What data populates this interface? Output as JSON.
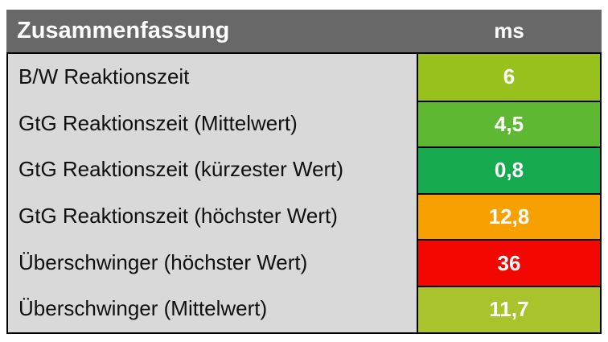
{
  "table": {
    "header": {
      "title": "Zusammenfassung",
      "unit": "ms"
    },
    "rows": [
      {
        "label": "B/W Reaktionszeit",
        "value": "6",
        "color": "#99c21e"
      },
      {
        "label": "GtG Reaktionszeit (Mittelwert)",
        "value": "4,5",
        "color": "#5eb832"
      },
      {
        "label": "GtG Reaktionszeit (kürzester Wert)",
        "value": "0,8",
        "color": "#17a94e"
      },
      {
        "label": "GtG Reaktionszeit (höchster Wert)",
        "value": "12,8",
        "color": "#f8a000"
      },
      {
        "label": "Überschwinger (höchster Wert)",
        "value": "36",
        "color": "#f20800"
      },
      {
        "label": "Überschwinger (Mittelwert)",
        "value": "11,7",
        "color": "#a9c32d"
      }
    ],
    "colors": {
      "header_bg": "#686868",
      "header_text": "#ffffff",
      "label_bg": "#d9d9d9",
      "label_text": "#101010",
      "value_text": "#ffffff",
      "border": "#000000"
    }
  },
  "chart_data": {
    "type": "table",
    "title": "Zusammenfassung",
    "unit_column_header": "ms",
    "columns": [
      "Zusammenfassung",
      "ms"
    ],
    "categories": [
      "B/W Reaktionszeit",
      "GtG Reaktionszeit (Mittelwert)",
      "GtG Reaktionszeit (kürzester Wert)",
      "GtG Reaktionszeit (höchster Wert)",
      "Überschwinger (höchster Wert)",
      "Überschwinger (Mittelwert)"
    ],
    "values": [
      6,
      4.5,
      0.8,
      12.8,
      36,
      11.7
    ],
    "values_display": [
      "6",
      "4,5",
      "0,8",
      "12,8",
      "36",
      "11,7"
    ],
    "cell_colors": [
      "#99c21e",
      "#5eb832",
      "#17a94e",
      "#f8a000",
      "#f20800",
      "#a9c32d"
    ],
    "legend_position": "none",
    "grid": "black cell borders on value column"
  }
}
